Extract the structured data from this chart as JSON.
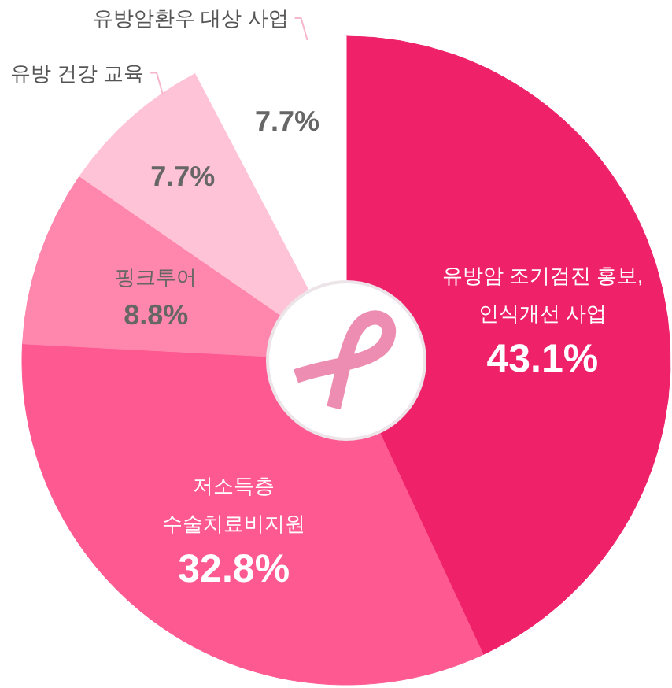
{
  "chart_data": {
    "type": "donut",
    "categories": [
      "유방암 조기검진 홍보, 인식개선 사업",
      "저소득층 수술치료비지원",
      "핑크투어",
      "유방 건강 교육",
      "유방암환우 대상 사업"
    ],
    "values": [
      43.1,
      32.8,
      8.8,
      7.7,
      7.7
    ],
    "colors": [
      "#ee2169",
      "#fe5990",
      "#ff87ae",
      "#ffc3d7",
      "#ffffff"
    ],
    "value_labels": [
      "43.1%",
      "32.8%",
      "8.8%",
      "7.7%",
      "7.7%"
    ]
  }
}
